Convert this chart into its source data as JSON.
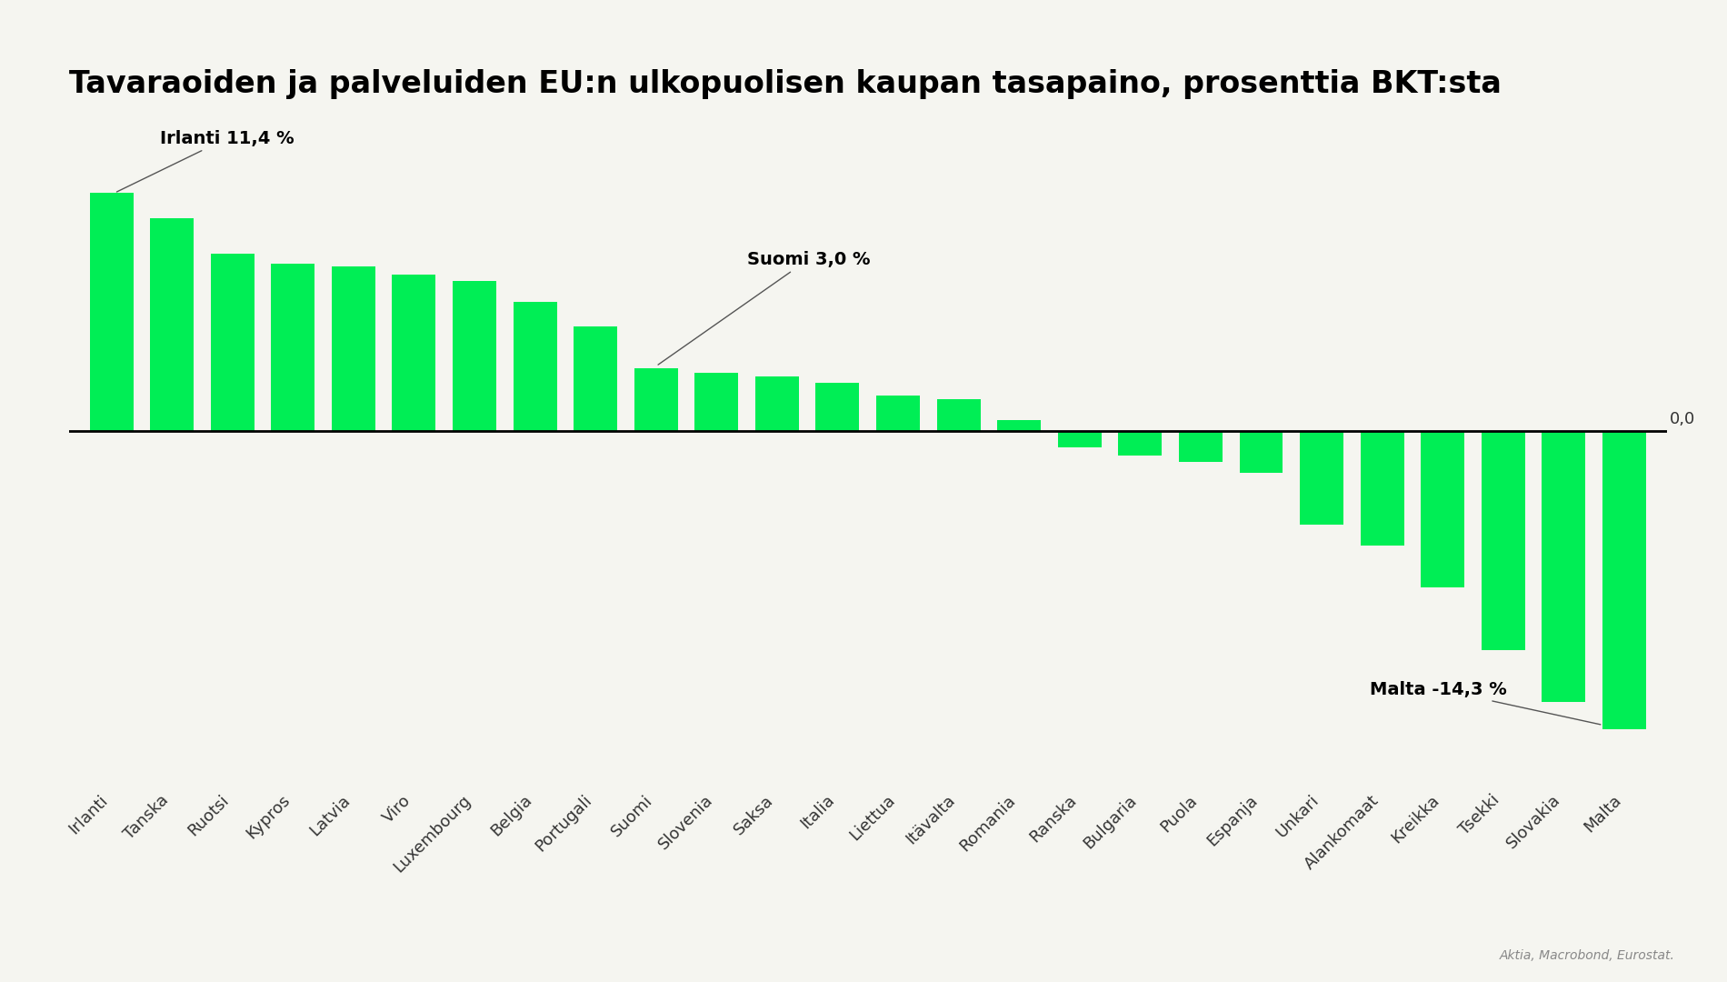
{
  "title": "Tavaraoiden ja palveluiden EU:n ulkopuolisen kaupan tasapaino, prosenttia BKT:sta",
  "categories": [
    "Irlanti",
    "Tanska",
    "Ruotsi",
    "Kypros",
    "Latvia",
    "Viro",
    "Luxembourg",
    "Belgia",
    "Portugali",
    "Suomi",
    "Slovenia",
    "Saksa",
    "Italia",
    "Liettua",
    "Itävalta",
    "Romania",
    "Ranska",
    "Bulgaria",
    "Puola",
    "Espanja",
    "Unkari",
    "Alankomaat",
    "Kreikka",
    "Tsekki",
    "Slovakia",
    "Malta"
  ],
  "values": [
    11.4,
    10.2,
    8.5,
    8.0,
    7.9,
    7.5,
    7.2,
    6.2,
    5.0,
    3.0,
    2.8,
    2.6,
    2.3,
    1.7,
    1.5,
    0.5,
    -0.8,
    -1.2,
    -1.5,
    -2.0,
    -4.5,
    -5.5,
    -7.5,
    -10.5,
    -13.0,
    -14.3
  ],
  "bar_color": "#00ee55",
  "background_color": "#f5f5f0",
  "annotation_ireland": "Irlanti 11,4 %",
  "annotation_finland": "Suomi 3,0 %",
  "annotation_malta": "Malta -14,3 %",
  "zero_label": "0,0",
  "source_text": "Aktia, Macrobond, Eurostat.",
  "ylim_min": -17,
  "ylim_max": 15,
  "title_fontsize": 24,
  "tick_fontsize": 13,
  "annotation_fontsize": 14
}
